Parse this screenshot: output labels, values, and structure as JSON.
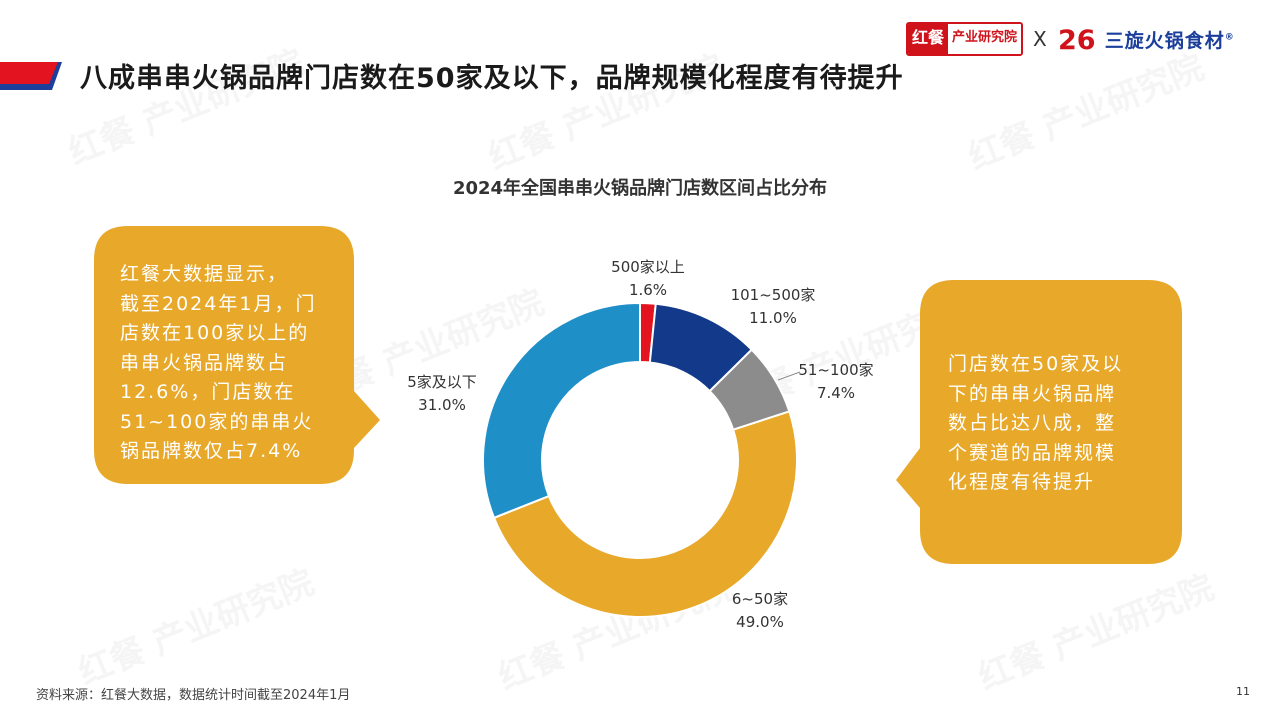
{
  "header": {
    "title": "八成串串火锅品牌门店数在50家及以下，品牌规模化程度有待提升",
    "logo_left_mark": "红餐",
    "logo_left_text": "产业研究院",
    "logo_separator": "X",
    "logo_right_mark": "26",
    "logo_right_text": "三旋火锅食材",
    "logo_right_registered": "®"
  },
  "watermark": "红餐 产业研究院",
  "chart_data": {
    "type": "pie",
    "variant": "donut",
    "title": "2024年全国串串火锅品牌门店数区间占比分布",
    "categories": [
      "500家以上",
      "101~500家",
      "51~100家",
      "6~50家",
      "5家及以下"
    ],
    "values": [
      1.6,
      11.0,
      7.4,
      49.0,
      31.0
    ],
    "value_labels": [
      "1.6%",
      "11.0%",
      "7.4%",
      "49.0%",
      "31.0%"
    ],
    "colors": [
      "#e3141f",
      "#133a8a",
      "#8c8c8c",
      "#e8a92b",
      "#1f8fc7"
    ],
    "start_angle_deg": 0,
    "direction": "clockwise",
    "legend": "none"
  },
  "callouts": {
    "left": {
      "lines": [
        "红餐大数据显示，",
        "截至2024年1月，门",
        "店数在100家以上的",
        "串串火锅品牌数占",
        "12.6%，门店数在",
        "51~100家的串串火",
        "锅品牌数仅占7.4%"
      ],
      "color": "#e8a92b"
    },
    "right": {
      "lines": [
        "门店数在50家及以",
        "下的串串火锅品牌",
        "数占比达八成，整",
        "个赛道的品牌规模",
        "化程度有待提升"
      ],
      "color": "#e8a92b"
    }
  },
  "footer": {
    "source": "资料来源：红餐大数据，数据统计时间截至2024年1月",
    "page_number": "11"
  }
}
